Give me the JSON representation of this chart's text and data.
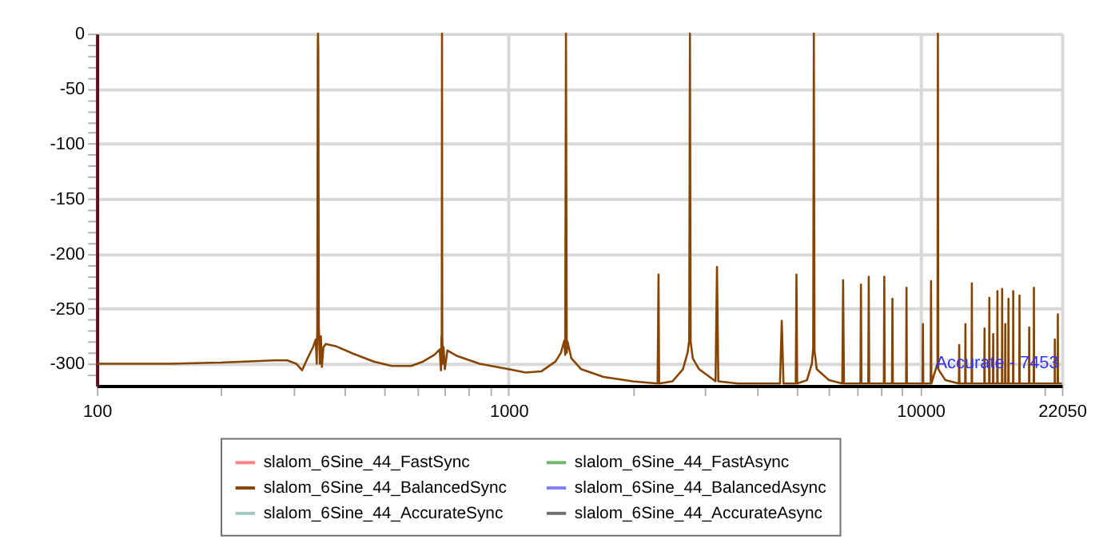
{
  "chart_data": {
    "type": "line",
    "log": "x",
    "grid": true,
    "legend": "bottom",
    "marker": "none",
    "line_style": "solid",
    "xlim": [
      100,
      22050
    ],
    "ylim": [
      -320,
      0
    ],
    "xticks": [
      100,
      {
        "value": 200,
        "label": null
      },
      {
        "value": 300,
        "label": null
      },
      {
        "value": 400,
        "label": null
      },
      {
        "value": 500,
        "label": null
      },
      {
        "value": 600,
        "label": null
      },
      {
        "value": 700,
        "label": null
      },
      {
        "value": 800,
        "label": null
      },
      {
        "value": 900,
        "label": null
      },
      1000,
      {
        "value": 2000,
        "label": null
      },
      {
        "value": 3000,
        "label": null
      },
      {
        "value": 4000,
        "label": null
      },
      {
        "value": 5000,
        "label": null
      },
      {
        "value": 6000,
        "label": null
      },
      {
        "value": 7000,
        "label": null
      },
      {
        "value": 8000,
        "label": null
      },
      {
        "value": 9000,
        "label": null
      },
      10000,
      {
        "value": 20000,
        "label": null
      },
      22050
    ],
    "yticks": [
      0,
      {
        "value": -10,
        "label": null
      },
      {
        "value": -20,
        "label": null
      },
      {
        "value": -30,
        "label": null
      },
      {
        "value": -40,
        "label": null
      },
      -50,
      {
        "value": -60,
        "label": null
      },
      {
        "value": -70,
        "label": null
      },
      {
        "value": -80,
        "label": null
      },
      {
        "value": -90,
        "label": null
      },
      -100,
      {
        "value": -110,
        "label": null
      },
      {
        "value": -120,
        "label": null
      },
      {
        "value": -130,
        "label": null
      },
      {
        "value": -140,
        "label": null
      },
      -150,
      {
        "value": -160,
        "label": null
      },
      {
        "value": -170,
        "label": null
      },
      {
        "value": -180,
        "label": null
      },
      {
        "value": -190,
        "label": null
      },
      -200,
      {
        "value": -210,
        "label": null
      },
      {
        "value": -220,
        "label": null
      },
      {
        "value": -230,
        "label": null
      },
      {
        "value": -240,
        "label": null
      },
      -250,
      {
        "value": -260,
        "label": null
      },
      {
        "value": -270,
        "label": null
      },
      {
        "value": -280,
        "label": null
      },
      {
        "value": -290,
        "label": null
      },
      -300,
      {
        "value": -310,
        "label": null
      }
    ],
    "annotations": [
      "Accurate - 7453"
    ],
    "series": [
      {
        "name": "slalom_6Sine_44_FastSync",
        "color": "#ff8080"
      },
      {
        "name": "slalom_6Sine_44_BalancedSync",
        "color": "#874400",
        "x": [
          100,
          150,
          200,
          230,
          270,
          290,
          305,
          315,
          325,
          335,
          340,
          342,
          343,
          344,
          344.5,
          345,
          346,
          348,
          350,
          352,
          355,
          360,
          380,
          420,
          470,
          520,
          580,
          620,
          660,
          680,
          685,
          687,
          688,
          689,
          690,
          692,
          695,
          700,
          710,
          750,
          850,
          1000,
          1100,
          1200,
          1300,
          1340,
          1365,
          1372,
          1378,
          1384,
          1390,
          1420,
          1500,
          1700,
          2000,
          2300,
          2312,
          2320,
          2500,
          2650,
          2720,
          2745,
          2756,
          2767,
          2800,
          2900,
          3180,
          3206,
          3230,
          3600,
          4000,
          4560,
          4605,
          4650,
          4980,
          5000,
          5020,
          5300,
          5450,
          5490,
          5510,
          5530,
          5600,
          6000,
          6460,
          6490,
          6520,
          7150,
          7170,
          7190,
          7470,
          7490,
          7510,
          8150,
          8170,
          8190,
          8530,
          8550,
          8570,
          9230,
          9250,
          9270,
          10120,
          10140,
          10160,
          10590,
          10610,
          10630,
          11000,
          11025,
          11050,
          11500,
          12400,
          12420,
          12440,
          12840,
          12860,
          12880,
          13310,
          13330,
          13350,
          14290,
          14310,
          14330,
          14680,
          14700,
          14720,
          15000,
          15020,
          15040,
          15360,
          15380,
          15400,
          15770,
          15790,
          15810,
          16050,
          16070,
          16090,
          16340,
          16360,
          16380,
          16780,
          16800,
          16820,
          17380,
          17400,
          17420,
          18350,
          18370,
          18390,
          18840,
          18860,
          18880,
          21180,
          21200,
          21220,
          21540,
          21560,
          21580,
          22050
        ],
        "values": [
          -300,
          -300,
          -299,
          -298,
          -297,
          -297,
          -300,
          -306,
          -295,
          -285,
          -278,
          -300,
          -270,
          -10,
          0,
          -15,
          -265,
          -300,
          -275,
          -303,
          -285,
          -282,
          -284,
          -291,
          -298,
          -302,
          -302,
          -298,
          -292,
          -287,
          -306,
          -275,
          -280,
          0,
          -275,
          -300,
          -285,
          -305,
          -288,
          -293,
          -300,
          -305,
          -308,
          -307,
          -298,
          -290,
          -279,
          -292,
          0,
          -290,
          -280,
          -295,
          -305,
          -312,
          -316,
          -318,
          -219,
          -318,
          -316,
          -305,
          -290,
          -279,
          0,
          -280,
          -295,
          -305,
          -316,
          -212,
          -316,
          -318,
          -318,
          -318,
          -261,
          -318,
          -318,
          -219,
          -318,
          -315,
          -300,
          -286,
          0,
          -288,
          -305,
          -315,
          -318,
          -224,
          -318,
          -318,
          -228,
          -318,
          -318,
          -221,
          -318,
          -318,
          -221,
          -318,
          -318,
          -241,
          -318,
          -318,
          -231,
          -318,
          -318,
          -264,
          -318,
          -318,
          -225,
          -318,
          -300,
          0,
          -305,
          -315,
          -318,
          -283,
          -318,
          -318,
          -264,
          -318,
          -318,
          -227,
          -318,
          -318,
          -268,
          -318,
          -318,
          -240,
          -318,
          -318,
          -273,
          -318,
          -318,
          -234,
          -318,
          -318,
          -232,
          -318,
          -318,
          -264,
          -318,
          -318,
          -241,
          -318,
          -318,
          -234,
          -318,
          -318,
          -238,
          -318,
          -318,
          -267,
          -318,
          -318,
          -231,
          -318,
          -318,
          -278,
          -318,
          -318,
          -255,
          -318,
          -318
        ]
      },
      {
        "name": "slalom_6Sine_44_AccurateSync",
        "color": "#a0c8c0"
      },
      {
        "name": "slalom_6Sine_44_FastAsync",
        "color": "#70b870"
      },
      {
        "name": "slalom_6Sine_44_BalancedAsync",
        "color": "#7f7fff"
      },
      {
        "name": "slalom_6Sine_44_AccurateAsync",
        "color": "#707070"
      }
    ]
  }
}
